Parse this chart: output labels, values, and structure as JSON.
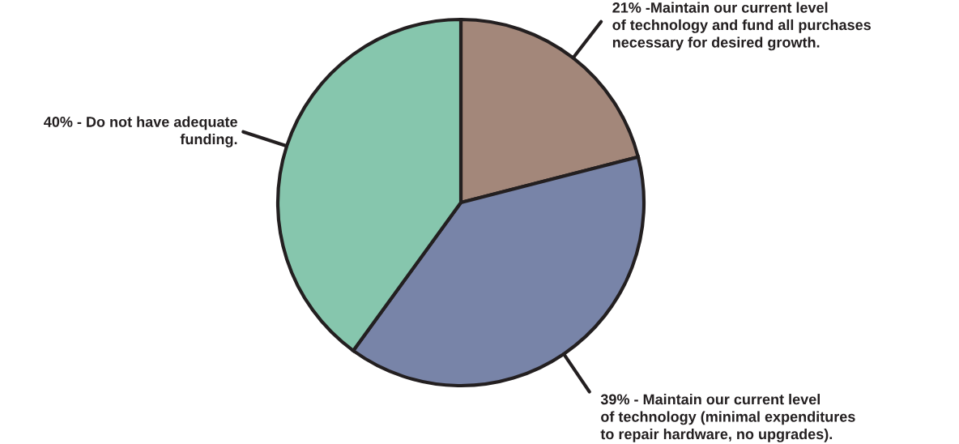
{
  "chart_data": {
    "type": "pie",
    "categories": [
      "-Maintain our current level\nof technology and fund all purchases\nnecessary for desired growth.",
      "- Maintain our current level\nof technology (minimal expenditures\nto repair hardware, no upgrades).",
      "- Do not have adequate\nfunding."
    ],
    "values": [
      21,
      39,
      40
    ],
    "value_labels": [
      "21%",
      "39%",
      "40%"
    ],
    "colors": [
      "#a3877a",
      "#7884a8",
      "#86c6ad"
    ],
    "legend": false
  }
}
